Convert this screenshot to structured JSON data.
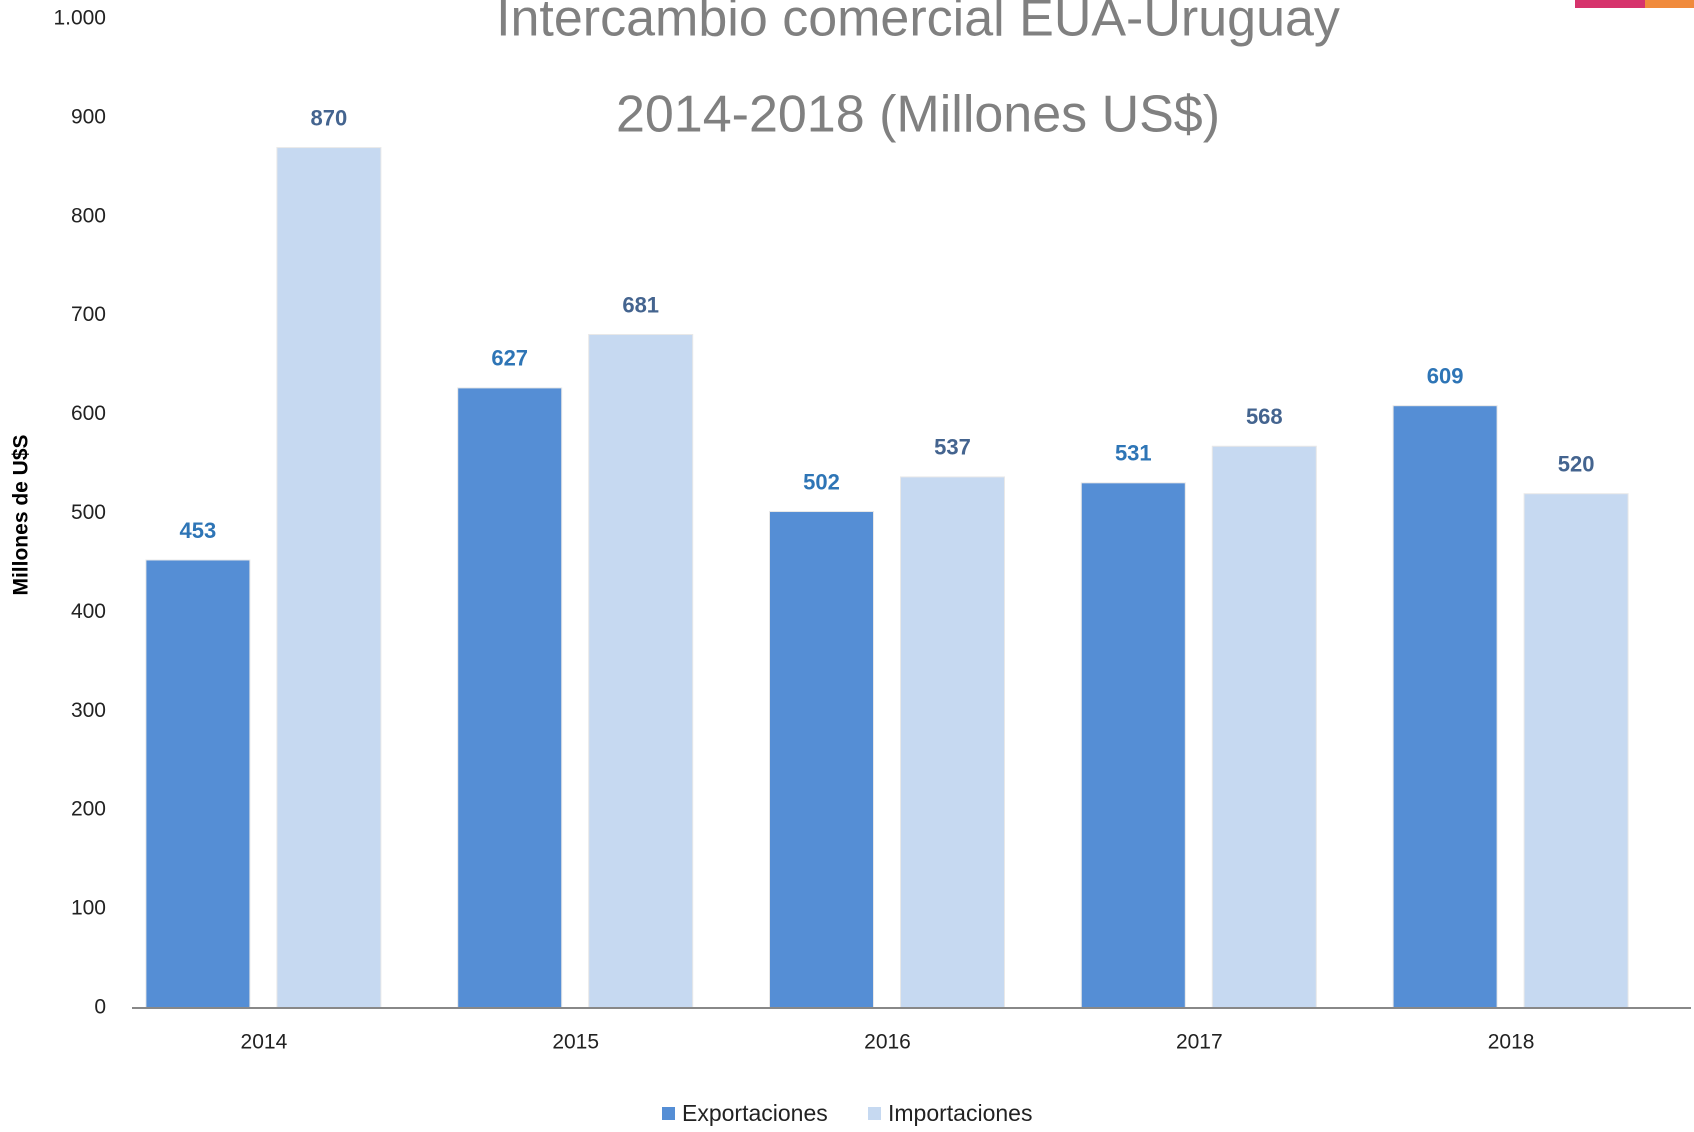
{
  "chart_data": {
    "type": "bar",
    "title": "Intercambio comercial EUA-Uruguay",
    "subtitle": "2014-2018 (Millones US$)",
    "y_label": "Millones de U$S",
    "categories": [
      "2014",
      "2015",
      "2016",
      "2017",
      "2018"
    ],
    "series": [
      {
        "name": "Exportaciones",
        "color": "#558ed5",
        "label_color": "#2e75b6",
        "values": [
          453,
          627,
          502,
          531,
          609
        ]
      },
      {
        "name": "Importaciones",
        "color": "#c6d9f1",
        "label_color": "#44648f",
        "values": [
          870,
          681,
          537,
          568,
          520
        ]
      }
    ],
    "ylim": [
      0,
      1000
    ],
    "yticks": [
      0,
      100,
      200,
      300,
      400,
      500,
      600,
      700,
      800,
      900,
      {
        "value": 1000,
        "label": "1.000"
      }
    ],
    "grid": false,
    "legend": "bottom"
  }
}
